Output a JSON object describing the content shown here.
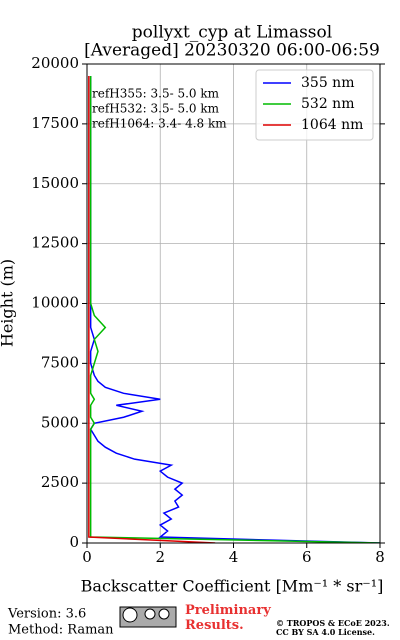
{
  "chart_data": {
    "type": "profile",
    "title": "pollyxt_cyp at Limassol",
    "subtitle": "[Averaged] 20230320 06:00-06:59",
    "xlabel": "Backscatter Coefficient [Mm⁻¹ * sr⁻¹]",
    "ylabel": "Height (m)",
    "annotations": [
      "refH355:  3.5- 5.0 km",
      "refH532:  3.5- 5.0 km",
      "refH1064:  3.4- 4.8 km"
    ],
    "heights": [
      0,
      250,
      500,
      750,
      1000,
      1250,
      1500,
      1750,
      2000,
      2250,
      2500,
      2750,
      3000,
      3250,
      3500,
      3750,
      4000,
      4250,
      4500,
      4750,
      5000,
      5250,
      5500,
      5750,
      6000,
      6250,
      6500,
      6750,
      7000,
      7500,
      8000,
      8500,
      9000,
      9500,
      10000,
      11000,
      12000,
      13000,
      14000,
      15000,
      16000,
      17000,
      18000,
      19000,
      19500
    ],
    "series": [
      {
        "name": "355 nm",
        "color": "#0000ff",
        "values": [
          8,
          2.0,
          2.2,
          2.0,
          2.3,
          2.1,
          2.5,
          2.4,
          2.6,
          2.4,
          2.6,
          2.2,
          2.0,
          2.3,
          1.3,
          0.8,
          0.5,
          0.3,
          0.2,
          0.1,
          0.2,
          1.0,
          1.5,
          0.8,
          2.0,
          1.0,
          0.5,
          0.3,
          0.2,
          0.1,
          0.1,
          0.2,
          0.1,
          0.1,
          0.1,
          0.1,
          0.1,
          0.1,
          0.1,
          0.1,
          0.1,
          0.1,
          0.1,
          0.1,
          0.1
        ]
      },
      {
        "name": "532 nm",
        "color": "#00bb00",
        "values": [
          8,
          0.1,
          0.1,
          0.1,
          0.1,
          0.1,
          0.1,
          0.1,
          0.1,
          0.1,
          0.1,
          0.1,
          0.1,
          0.1,
          0.1,
          0.1,
          0.1,
          0.1,
          0.1,
          0.1,
          0.2,
          0.1,
          0.1,
          0.1,
          0.2,
          0.1,
          0.1,
          0.1,
          0.1,
          0.2,
          0.3,
          0.2,
          0.5,
          0.2,
          0.1,
          0.1,
          0.1,
          0.1,
          0.1,
          0.1,
          0.1,
          0.1,
          0.1,
          0.1,
          0.1
        ]
      },
      {
        "name": "1064 nm",
        "color": "#dd0000",
        "values": [
          3.5,
          0.05,
          0.05,
          0.05,
          0.05,
          0.05,
          0.05,
          0.05,
          0.05,
          0.05,
          0.05,
          0.05,
          0.05,
          0.05,
          0.05,
          0.05,
          0.05,
          0.05,
          0.05,
          0.05,
          0.05,
          0.05,
          0.05,
          0.05,
          0.05,
          0.05,
          0.05,
          0.05,
          0.05,
          0.05,
          0.05,
          0.05,
          0.05,
          0.05,
          0.05,
          0.05,
          0.05,
          0.05,
          0.05,
          0.05,
          0.05,
          0.05,
          0.05,
          0.05,
          0.05
        ]
      }
    ],
    "xlim": [
      0,
      8
    ],
    "xticks": [
      0,
      2,
      4,
      6,
      8
    ],
    "ylim": [
      0,
      20000
    ],
    "yticks": [
      0,
      2500,
      5000,
      7500,
      10000,
      12500,
      15000,
      17500,
      20000
    ],
    "grid": true,
    "legend": "upper right"
  },
  "footer": {
    "version": "Version: 3.6",
    "method": "Method: Raman",
    "preliminary": "Preliminary Results.",
    "copyright": "© TROPOS & ECoE 2023.",
    "license": "CC BY SA 4.0 License."
  }
}
